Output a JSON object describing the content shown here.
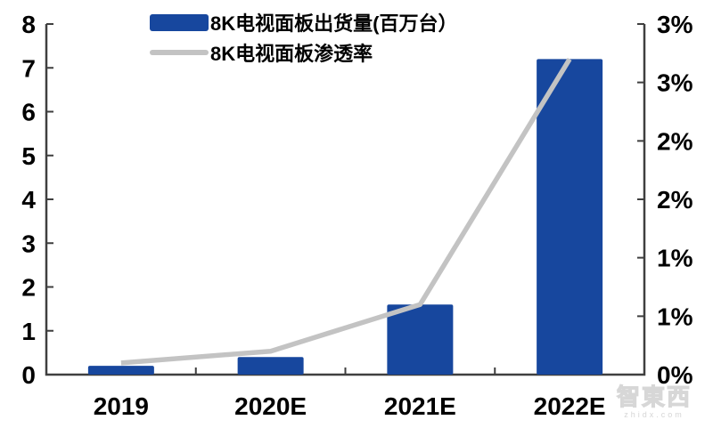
{
  "watermark": {
    "logo": "智東西",
    "domain": "zhidx.com"
  },
  "chart_data": {
    "type": "combo",
    "categories": [
      "2019",
      "2020E",
      "2021E",
      "2022E"
    ],
    "series": [
      {
        "name": "8K电视面板出货量(百万台）",
        "type": "bar",
        "axis": "left",
        "values": [
          0.2,
          0.4,
          1.6,
          7.2
        ],
        "color": "#17479E"
      },
      {
        "name": "8K电视面板渗透率",
        "type": "line",
        "axis": "right",
        "unit": "%",
        "values": [
          0.1,
          0.2,
          0.6,
          2.7
        ],
        "color": "#C3C3C3"
      }
    ],
    "left_axis": {
      "min": 0,
      "max": 8,
      "step": 1,
      "tick_labels": [
        "0",
        "1",
        "2",
        "3",
        "4",
        "5",
        "6",
        "7",
        "8"
      ]
    },
    "right_axis": {
      "min": 0,
      "max": 3,
      "step": 0.5,
      "tick_labels": [
        "0%",
        "1%",
        "1%",
        "2%",
        "2%",
        "3%",
        "3%"
      ]
    },
    "legend_position": "top",
    "grid": false,
    "title": "",
    "axis_color": "#3F3F3F",
    "text_color": "#000000",
    "background": "#FFFFFF"
  }
}
